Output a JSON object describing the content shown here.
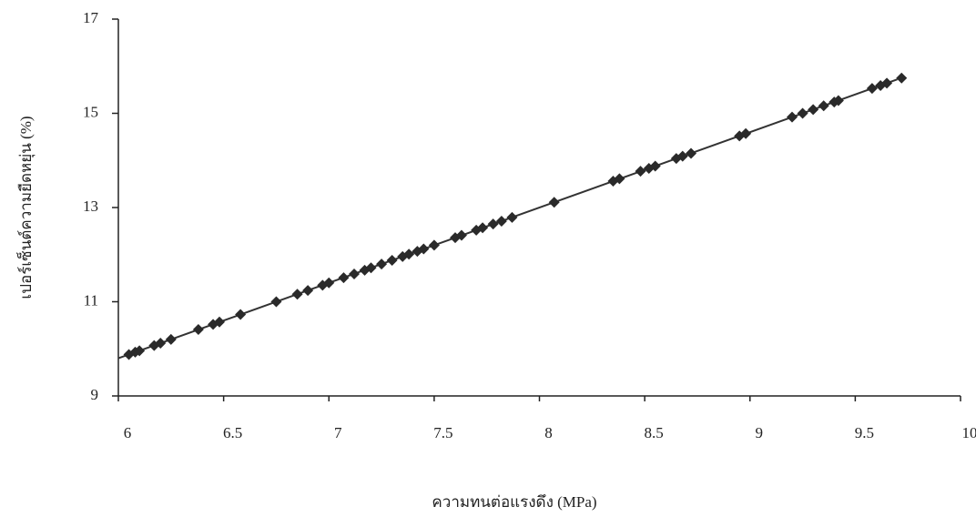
{
  "chart_data": {
    "type": "scatter",
    "x_label": "ความทนต่อแรงดึง (MPa)",
    "y_label": "เปอร์เซ็นต์ความยืดหยุ่น (%)",
    "x": [
      6.05,
      6.08,
      6.1,
      6.17,
      6.2,
      6.25,
      6.38,
      6.45,
      6.48,
      6.58,
      6.75,
      6.85,
      6.9,
      6.97,
      7.0,
      7.07,
      7.12,
      7.17,
      7.2,
      7.25,
      7.3,
      7.35,
      7.38,
      7.42,
      7.45,
      7.5,
      7.6,
      7.63,
      7.7,
      7.73,
      7.78,
      7.82,
      7.87,
      8.07,
      8.35,
      8.38,
      8.48,
      8.52,
      8.55,
      8.65,
      8.68,
      8.72,
      8.95,
      8.98,
      9.2,
      9.25,
      9.3,
      9.35,
      9.4,
      9.42,
      9.58,
      9.62,
      9.65,
      9.72
    ],
    "values": [
      9.88,
      9.93,
      9.96,
      10.07,
      10.12,
      10.2,
      10.41,
      10.52,
      10.57,
      10.73,
      11.0,
      11.16,
      11.24,
      11.35,
      11.4,
      11.51,
      11.59,
      11.67,
      11.72,
      11.8,
      11.88,
      11.96,
      12.01,
      12.07,
      12.12,
      12.2,
      12.36,
      12.41,
      12.52,
      12.57,
      12.65,
      12.71,
      12.79,
      13.11,
      13.56,
      13.61,
      13.77,
      13.83,
      13.88,
      14.04,
      14.09,
      14.15,
      14.52,
      14.57,
      14.92,
      15.0,
      15.08,
      15.16,
      15.24,
      15.27,
      15.53,
      15.59,
      15.64,
      15.75
    ],
    "color": "#2a2a2a",
    "trendline": {
      "x": [
        6,
        9.7
      ],
      "y": [
        9.8,
        15.72
      ],
      "color": "#333333"
    },
    "xlim": [
      6,
      10
    ],
    "xticks": [
      6,
      6.5,
      7,
      7.5,
      8,
      8.5,
      9,
      9.5,
      10
    ],
    "ylim": [
      9,
      17
    ],
    "yticks": [
      9,
      11,
      13,
      15,
      17
    ]
  }
}
